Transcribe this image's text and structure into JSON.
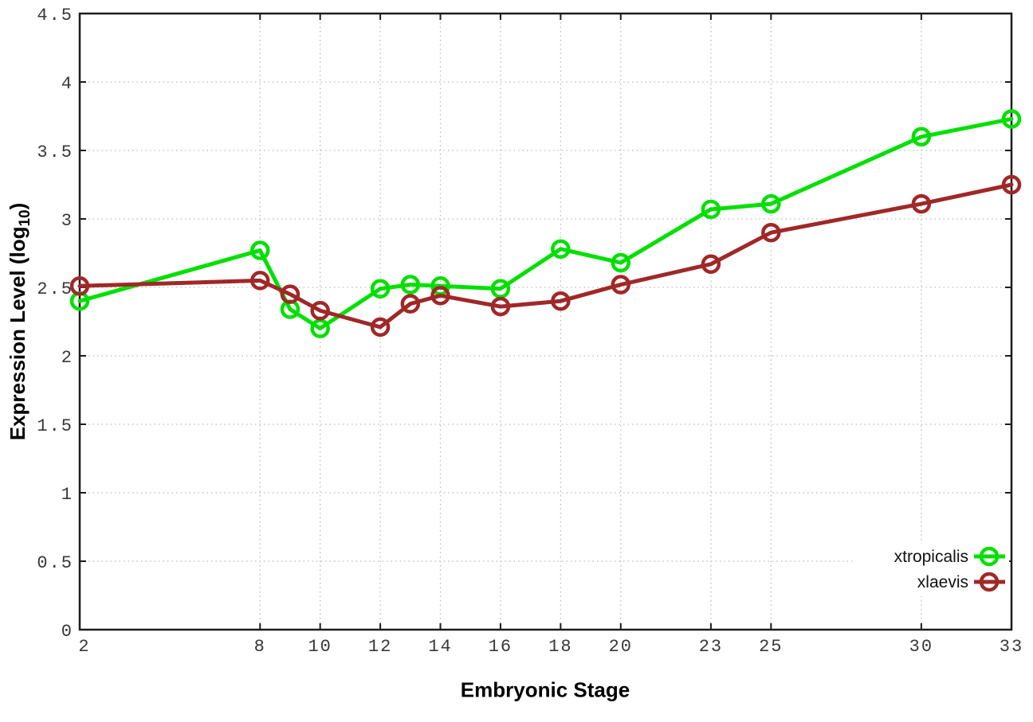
{
  "labels": {
    "xlabel": "Embryonic Stage",
    "ylabel_main": "Expression Level (log",
    "ylabel_sub": "10",
    "ylabel_close": ")"
  },
  "chart_data": {
    "type": "line",
    "title": "",
    "xlabel": "Embryonic Stage",
    "ylabel": "Expression Level (log10)",
    "xlim": [
      2,
      33
    ],
    "ylim": [
      0,
      4.5
    ],
    "grid": true,
    "legend_position": "bottom-right-inside",
    "x_ticks": [
      2,
      8,
      10,
      12,
      14,
      16,
      18,
      20,
      23,
      25,
      30,
      33
    ],
    "x_tick_labels": [
      "2",
      "8",
      "10",
      "12",
      "14",
      "16",
      "18",
      "20",
      "23",
      "25",
      "30",
      "33"
    ],
    "y_ticks": [
      0,
      0.5,
      1,
      1.5,
      2,
      2.5,
      3,
      3.5,
      4,
      4.5
    ],
    "y_tick_labels": [
      "0",
      "0.5",
      "1",
      "1.5",
      "2",
      "2.5",
      "3",
      "3.5",
      "4",
      "4.5"
    ],
    "x": [
      2,
      8,
      9,
      10,
      12,
      13,
      14,
      16,
      18,
      20,
      23,
      25,
      30,
      33
    ],
    "series": [
      {
        "name": "xtropicalis",
        "color": "#00e000",
        "values": [
          2.4,
          2.77,
          2.34,
          2.2,
          2.49,
          2.52,
          2.51,
          2.49,
          2.78,
          2.68,
          3.07,
          3.11,
          3.6,
          3.73
        ]
      },
      {
        "name": "xlaevis",
        "color": "#a02828",
        "values": [
          2.51,
          2.55,
          2.45,
          2.33,
          2.21,
          2.38,
          2.44,
          2.36,
          2.4,
          2.52,
          2.67,
          2.9,
          3.11,
          3.25
        ]
      }
    ],
    "style": {
      "grid_color": "#bbbbbb",
      "axis_color": "#1c1c1c",
      "tick_label_color": "#383838",
      "marker": "open-circle",
      "line_width": 5,
      "marker_radius": 10,
      "marker_stroke": 4.5
    }
  }
}
